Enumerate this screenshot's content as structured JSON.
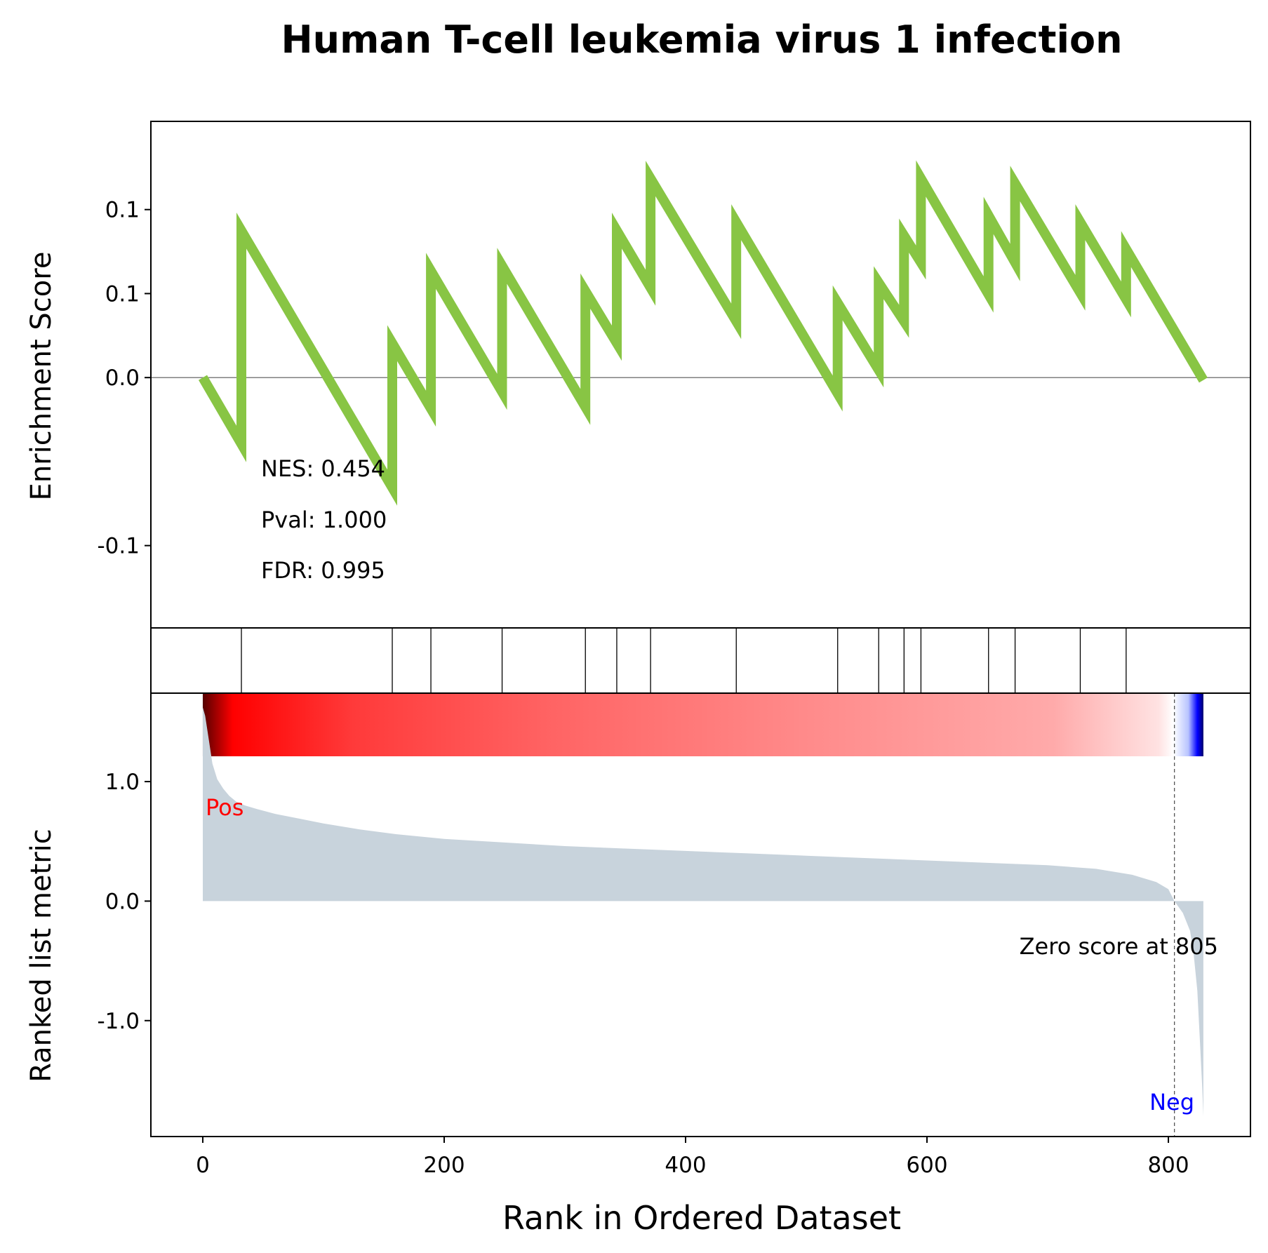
{
  "chart_data": {
    "type": "line",
    "title": "Human T-cell leukemia virus 1 infection",
    "xlabel": "Rank in Ordered Dataset",
    "xlim": [
      -43,
      868
    ],
    "xticks": [
      0,
      200,
      400,
      600,
      800
    ],
    "xtick_labels": [
      "0",
      "200",
      "400",
      "600",
      "800"
    ],
    "colors": {
      "es_line": "#88c544",
      "area": "#c8d3dc",
      "pos": "#ff0000",
      "neg": "#0000ff",
      "axis": "#000000",
      "zero_line": "#808080"
    },
    "enrichment": {
      "ylabel": "Enrichment Score",
      "ylim": [
        -0.149,
        0.1525
      ],
      "yticks": [
        -0.1,
        0.0,
        0.05,
        0.1
      ],
      "ytick_labels": [
        "-0.1",
        "0.0",
        "0.1",
        "0.1"
      ],
      "stats": [
        "NES: 0.454",
        "Pval: 1.000",
        "FDR: 0.995"
      ],
      "points": [
        [
          0,
          0.0
        ],
        [
          32,
          -0.0395
        ],
        [
          32,
          0.0875
        ],
        [
          157,
          -0.0655
        ],
        [
          157,
          0.0205
        ],
        [
          189,
          -0.0185
        ],
        [
          189,
          0.0635
        ],
        [
          248,
          -0.0085
        ],
        [
          248,
          0.0665
        ],
        [
          317,
          -0.0175
        ],
        [
          317,
          0.0515
        ],
        [
          343,
          0.0205
        ],
        [
          343,
          0.0875
        ],
        [
          371,
          0.0535
        ],
        [
          371,
          0.1185
        ],
        [
          442,
          0.0335
        ],
        [
          442,
          0.0925
        ],
        [
          526,
          -0.0095
        ],
        [
          526,
          0.0445
        ],
        [
          560,
          0.0045
        ],
        [
          560,
          0.0565
        ],
        [
          581,
          0.0335
        ],
        [
          581,
          0.0845
        ],
        [
          595,
          0.0685
        ],
        [
          595,
          0.1185
        ],
        [
          651,
          0.0495
        ],
        [
          651,
          0.0965
        ],
        [
          673,
          0.0685
        ],
        [
          673,
          0.1155
        ],
        [
          727,
          0.0505
        ],
        [
          727,
          0.0925
        ],
        [
          765,
          0.0465
        ],
        [
          765,
          0.0765
        ],
        [
          829,
          -0.0015
        ]
      ]
    },
    "hits": [
      32,
      157,
      189,
      248,
      317,
      343,
      371,
      442,
      526,
      560,
      581,
      595,
      651,
      673,
      727,
      765
    ],
    "ranked_metric": {
      "ylabel": "Ranked list metric",
      "ylim": [
        -1.97,
        1.74
      ],
      "yticks": [
        -1.0,
        0.0,
        1.0
      ],
      "ytick_labels": [
        "-1.0",
        "0.0",
        "1.0"
      ],
      "pos_label": "Pos",
      "neg_label": "Neg",
      "zero_crossing": 805,
      "zero_label": "Zero score at 805",
      "points": [
        [
          0,
          1.62
        ],
        [
          2,
          1.55
        ],
        [
          5,
          1.35
        ],
        [
          8,
          1.15
        ],
        [
          12,
          1.02
        ],
        [
          17,
          0.94
        ],
        [
          22,
          0.88
        ],
        [
          28,
          0.83
        ],
        [
          35,
          0.8
        ],
        [
          45,
          0.77
        ],
        [
          60,
          0.73
        ],
        [
          80,
          0.69
        ],
        [
          100,
          0.65
        ],
        [
          130,
          0.6
        ],
        [
          160,
          0.56
        ],
        [
          200,
          0.52
        ],
        [
          250,
          0.49
        ],
        [
          300,
          0.46
        ],
        [
          350,
          0.44
        ],
        [
          400,
          0.42
        ],
        [
          450,
          0.4
        ],
        [
          500,
          0.38
        ],
        [
          550,
          0.36
        ],
        [
          600,
          0.34
        ],
        [
          650,
          0.32
        ],
        [
          700,
          0.3
        ],
        [
          740,
          0.27
        ],
        [
          770,
          0.22
        ],
        [
          790,
          0.16
        ],
        [
          800,
          0.1
        ],
        [
          805,
          0.0
        ],
        [
          812,
          -0.1
        ],
        [
          818,
          -0.25
        ],
        [
          821,
          -0.45
        ],
        [
          824,
          -0.75
        ],
        [
          826,
          -1.15
        ],
        [
          828,
          -1.55
        ],
        [
          829,
          -1.8
        ]
      ]
    }
  }
}
